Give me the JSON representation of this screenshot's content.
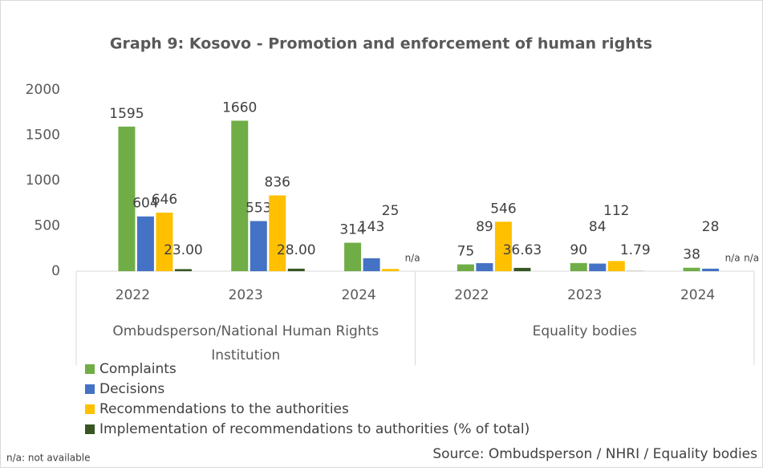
{
  "chart_data": {
    "type": "bar",
    "title": "Graph 9: Kosovo - Promotion and enforcement of human rights",
    "categories": [
      "2022",
      "2023",
      "2024",
      "2022",
      "2023",
      "2024"
    ],
    "groups": [
      {
        "name": "Ombudsperson/National Human Rights Institution",
        "size": 3
      },
      {
        "name": "Equality bodies",
        "size": 3
      }
    ],
    "series": [
      {
        "name": "Complaints",
        "color": "#70ad47",
        "values": [
          1595,
          1660,
          314,
          75,
          90,
          38
        ]
      },
      {
        "name": "Decisions",
        "color": "#4472c4",
        "values": [
          604,
          553,
          143,
          89,
          84,
          28
        ]
      },
      {
        "name": "Recommendations to the authorities",
        "color": "#ffc000",
        "values": [
          646,
          836,
          25,
          546,
          112,
          null
        ],
        "value_labels": [
          "646",
          "836",
          "25",
          "546",
          "112",
          "n/a"
        ]
      },
      {
        "name": "Implementation of recommendations to authorities (% of total)",
        "color": "#375623",
        "values": [
          23.0,
          28.0,
          null,
          36.63,
          1.79,
          null
        ],
        "value_labels": [
          "23.00",
          "28.00",
          "n/a",
          "36.63",
          "1.79",
          "n/a"
        ]
      }
    ],
    "ylim": [
      0,
      2000
    ],
    "yticks": [
      0,
      500,
      1000,
      1500,
      2000
    ],
    "footnote": "n/a: not available",
    "source": "Source: Ombudsperson / NHRI / Equality bodies"
  }
}
